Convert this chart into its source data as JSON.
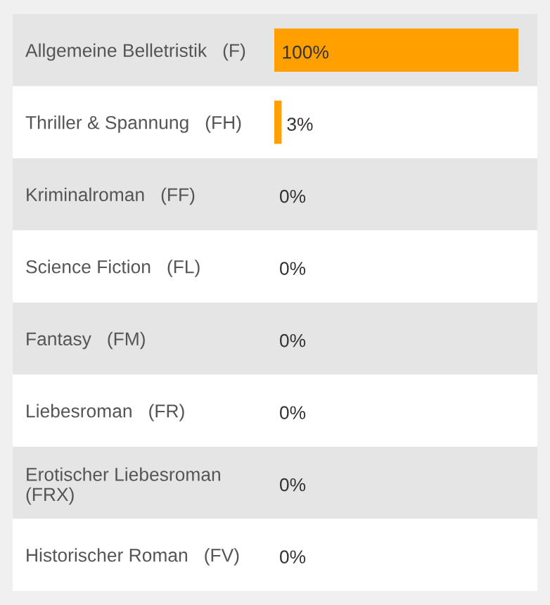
{
  "chart_data": {
    "type": "bar",
    "orientation": "horizontal",
    "categories": [
      "Allgemeine Belletristik   (F)",
      "Thriller & Spannung   (FH)",
      "Kriminalroman   (FF)",
      "Science Fiction   (FL)",
      "Fantasy   (FM)",
      "Liebesroman   (FR)",
      "Erotischer Liebesroman\n(FRX)",
      "Historischer Roman   (FV)"
    ],
    "values": [
      100,
      3,
      0,
      0,
      0,
      0,
      0,
      0
    ],
    "value_labels": [
      "100%",
      "3%",
      "0%",
      "0%",
      "0%",
      "0%",
      "0%",
      "0%"
    ],
    "color": "#ffa000"
  }
}
